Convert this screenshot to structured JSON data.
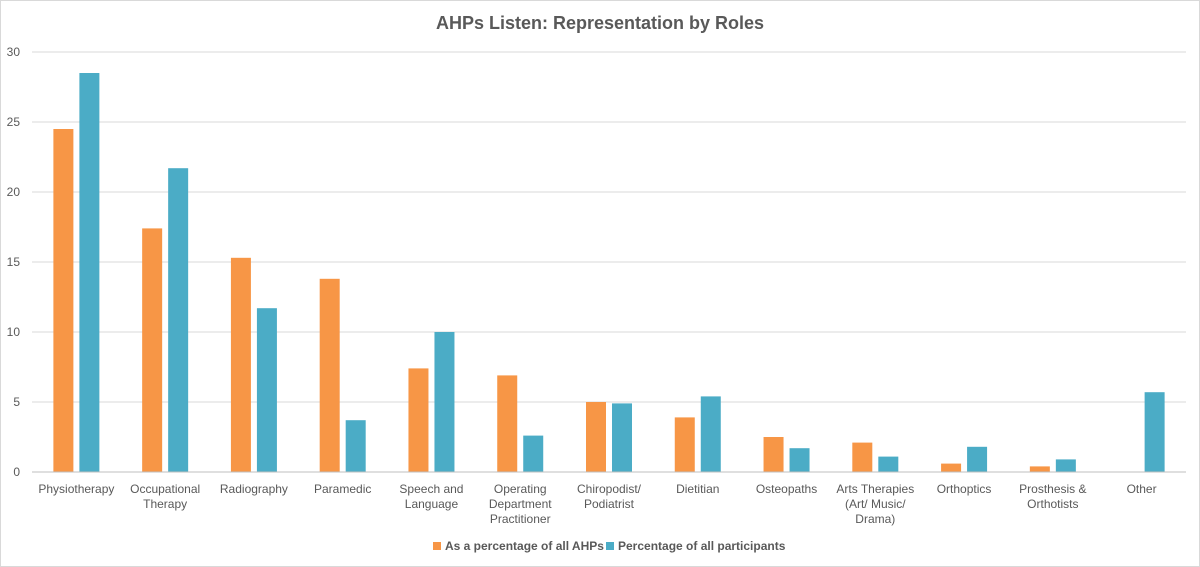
{
  "chart_data": {
    "type": "bar",
    "title": "AHPs Listen: Representation by Roles",
    "xlabel": "",
    "ylabel": "",
    "ylim": [
      0,
      30
    ],
    "yticks": [
      0,
      5,
      10,
      15,
      20,
      25,
      30
    ],
    "grid": true,
    "legend_position": "bottom",
    "categories": [
      "Physiotherapy",
      "Occupational Therapy",
      "Radiography",
      "Paramedic",
      "Speech and Language",
      "Operating Department Practitioner",
      "Chiropodist/ Podiatrist",
      "Dietitian",
      "Osteopaths",
      "Arts Therapies (Art/ Music/ Drama)",
      "Orthoptics",
      "Prosthesis & Orthotists",
      "Other"
    ],
    "category_lines": [
      [
        "Physiotherapy"
      ],
      [
        "Occupational",
        "Therapy"
      ],
      [
        "Radiography"
      ],
      [
        "Paramedic"
      ],
      [
        "Speech and",
        "Language"
      ],
      [
        "Operating",
        "Department",
        "Practitioner"
      ],
      [
        "Chiropodist/",
        "Podiatrist"
      ],
      [
        "Dietitian"
      ],
      [
        "Osteopaths"
      ],
      [
        "Arts Therapies",
        "(Art/ Music/",
        "Drama)"
      ],
      [
        "Orthoptics"
      ],
      [
        "Prosthesis &",
        "Orthotists"
      ],
      [
        "Other"
      ]
    ],
    "series": [
      {
        "name": "As a percentage of all AHPs",
        "color": "#f79646",
        "values": [
          24.5,
          17.4,
          15.3,
          13.8,
          7.4,
          6.9,
          5.0,
          3.9,
          2.5,
          2.1,
          0.6,
          0.4,
          0
        ]
      },
      {
        "name": "Percentage of all participants",
        "color": "#4bacc6",
        "values": [
          28.5,
          21.7,
          11.7,
          3.7,
          10.0,
          2.6,
          4.9,
          5.4,
          1.7,
          1.1,
          1.8,
          0.9,
          5.7
        ]
      }
    ]
  }
}
